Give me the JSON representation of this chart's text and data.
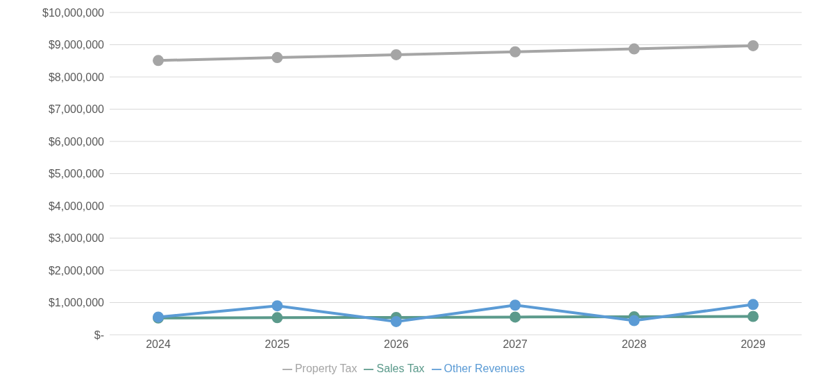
{
  "chart_data": {
    "type": "line",
    "categories": [
      "2024",
      "2025",
      "2026",
      "2027",
      "2028",
      "2029"
    ],
    "series": [
      {
        "name": "Property Tax",
        "color": "#a5a5a5",
        "values": [
          8510000,
          8600000,
          8690000,
          8780000,
          8870000,
          8970000
        ]
      },
      {
        "name": "Sales Tax",
        "color": "#5b9a8b",
        "values": [
          520000,
          530000,
          540000,
          550000,
          560000,
          570000
        ]
      },
      {
        "name": "Other Revenues",
        "color": "#5b9bd5",
        "values": [
          550000,
          900000,
          410000,
          920000,
          440000,
          940000
        ]
      }
    ],
    "ylim": [
      0,
      10000000
    ],
    "yticks": [
      {
        "value": 0,
        "label": "$-"
      },
      {
        "value": 1000000,
        "label": "$1,000,000"
      },
      {
        "value": 2000000,
        "label": "$2,000,000"
      },
      {
        "value": 3000000,
        "label": "$3,000,000"
      },
      {
        "value": 4000000,
        "label": "$4,000,000"
      },
      {
        "value": 5000000,
        "label": "$5,000,000"
      },
      {
        "value": 6000000,
        "label": "$6,000,000"
      },
      {
        "value": 7000000,
        "label": "$7,000,000"
      },
      {
        "value": 8000000,
        "label": "$8,000,000"
      },
      {
        "value": 9000000,
        "label": "$9,000,000"
      },
      {
        "value": 10000000,
        "label": "$10,000,000"
      }
    ],
    "grid": "y",
    "legend": "bottom",
    "marker": "circle",
    "line_style": "solid"
  }
}
